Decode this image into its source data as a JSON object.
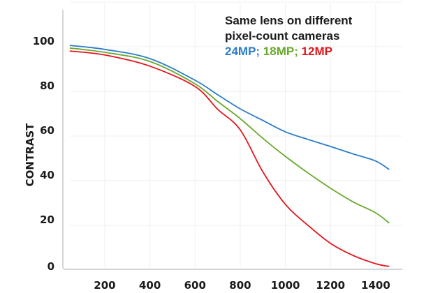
{
  "chart_data": {
    "type": "line",
    "title_lines": [
      "Same lens on different",
      "pixel-count cameras"
    ],
    "xlabel": "",
    "ylabel": "CONTRAST",
    "xlim": [
      0,
      1500
    ],
    "ylim": [
      0,
      120
    ],
    "x_ticks": [
      200,
      400,
      600,
      800,
      1000,
      1200,
      1400
    ],
    "x_tick_labels": [
      "200",
      "400",
      "600",
      "800",
      "1000",
      "1200",
      "1400"
    ],
    "y_ticks": [
      0,
      20,
      40,
      60,
      80,
      100
    ],
    "y_tick_labels": [
      "0",
      "20",
      "40",
      "60",
      "80",
      "100"
    ],
    "grid": true,
    "legend_placement": "top-right",
    "legend_separator": ";",
    "x": [
      45,
      200,
      400,
      600,
      700,
      800,
      900,
      1000,
      1100,
      1200,
      1300,
      1400,
      1460
    ],
    "series": [
      {
        "name": "24MP",
        "color": "#2b7dc8",
        "values": [
          100.6,
          98.8,
          94.7,
          85.0,
          78.5,
          72.2,
          67.0,
          61.9,
          58.5,
          55.3,
          52.0,
          48.8,
          45.0
        ]
      },
      {
        "name": "18MP",
        "color": "#6aa82c",
        "values": [
          99.4,
          97.5,
          93.4,
          83.4,
          75.5,
          67.8,
          59.0,
          50.9,
          43.5,
          36.6,
          30.5,
          25.6,
          21.0
        ]
      },
      {
        "name": "12MP",
        "color": "#e3151c",
        "values": [
          98.1,
          96.3,
          91.3,
          82.2,
          72.0,
          62.8,
          44.0,
          29.4,
          20.0,
          11.9,
          6.5,
          2.8,
          1.6
        ]
      }
    ]
  }
}
